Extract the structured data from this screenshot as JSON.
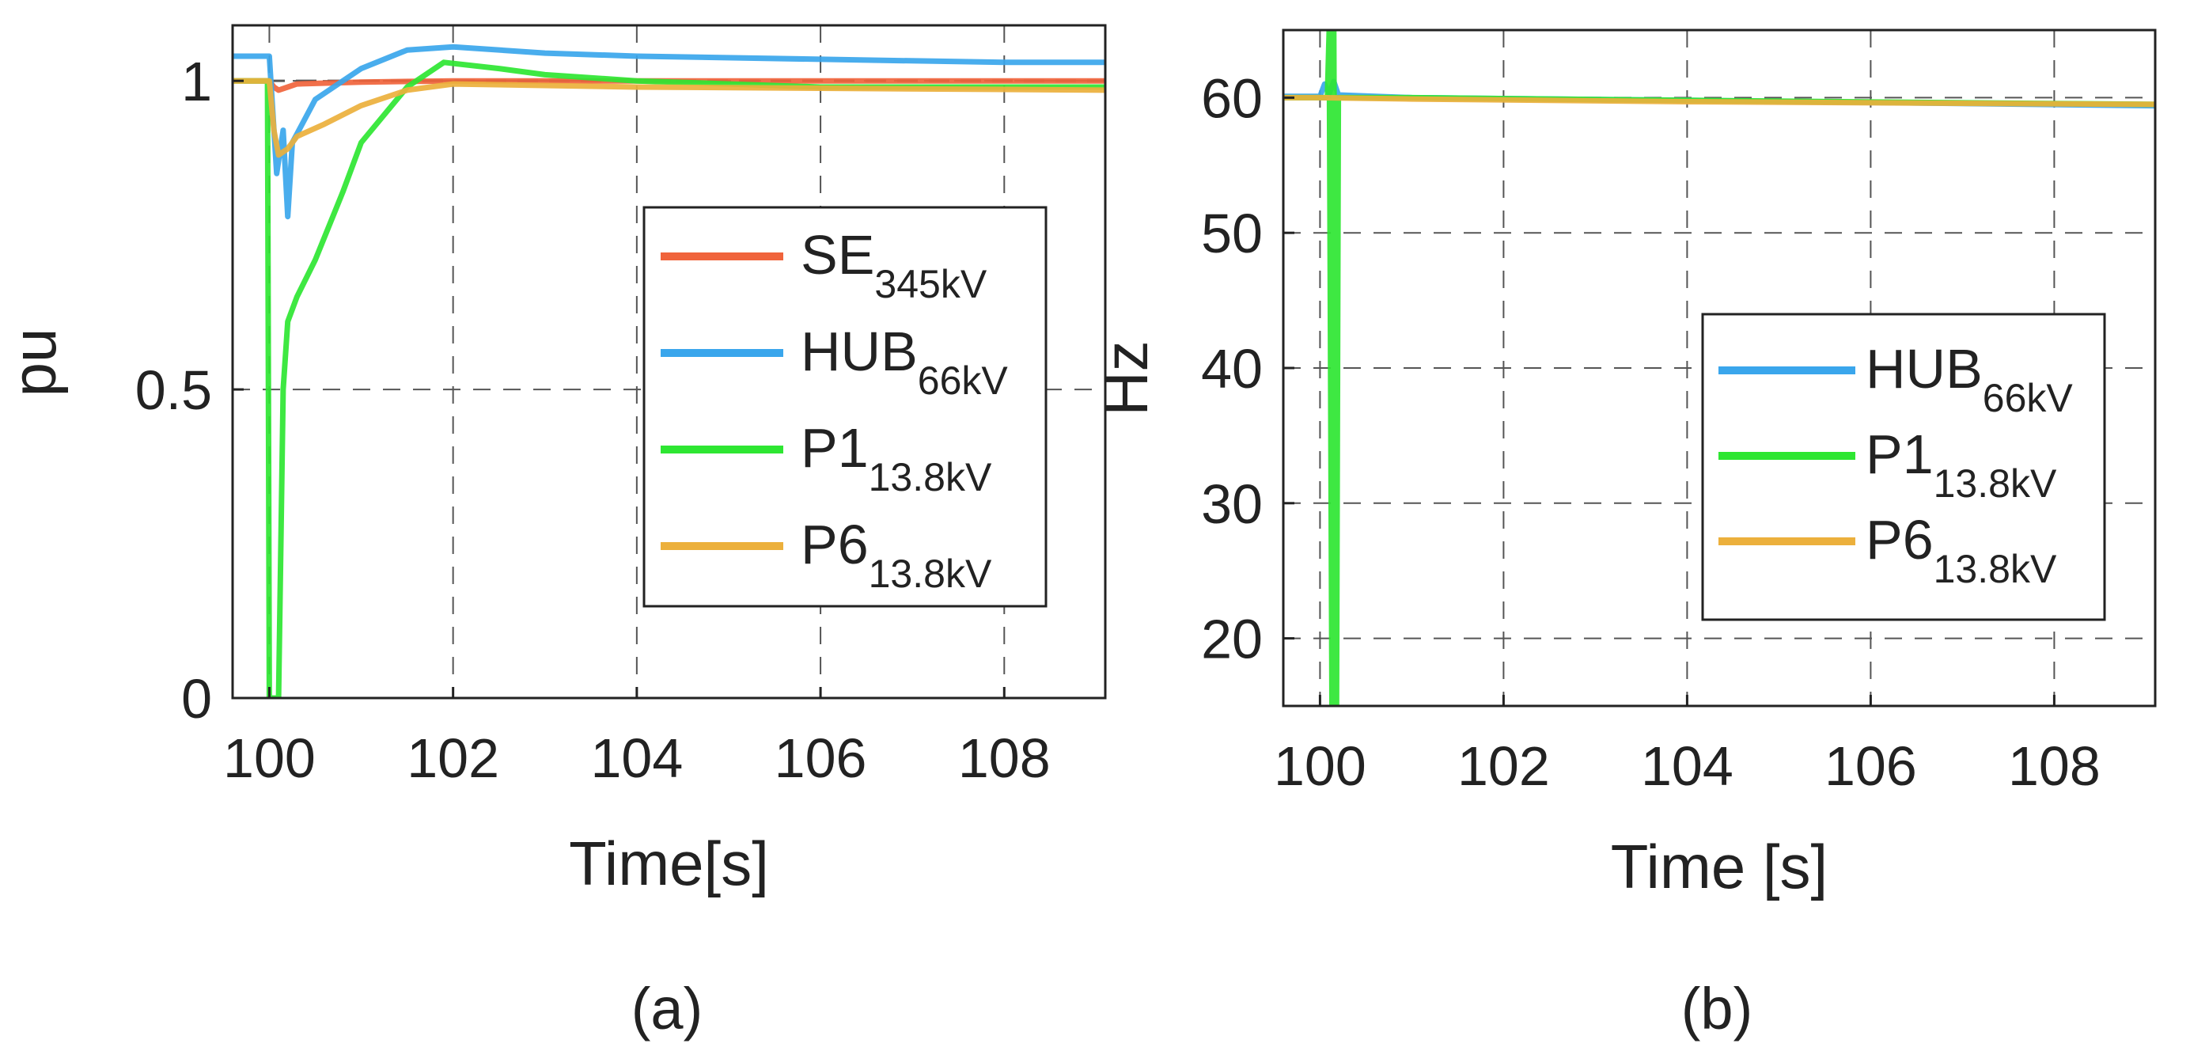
{
  "colors": {
    "se": "#f0643c",
    "hub": "#3aa6ec",
    "p1": "#2ee632",
    "p6": "#ecb03c",
    "grid": "#555555",
    "axis": "#222222"
  },
  "chart_data": [
    {
      "type": "line",
      "caption": "(a)",
      "xlabel": "Time[s]",
      "ylabel": "pu",
      "xlim": [
        99.6,
        109.1
      ],
      "ylim": [
        0,
        1.09
      ],
      "xticks": [
        100,
        102,
        104,
        106,
        108
      ],
      "xtick_labels": [
        "100",
        "102",
        "104",
        "106",
        "108"
      ],
      "yticks": [
        0,
        0.5,
        1
      ],
      "ytick_labels": [
        "0",
        "0.5",
        "1"
      ],
      "grid": true,
      "reference_line": 1.0,
      "legend": {
        "position": "center-right",
        "entries": [
          {
            "base": "SE",
            "sub": "345kV",
            "color_key": "se"
          },
          {
            "base": "HUB",
            "sub": "66kV",
            "color_key": "hub"
          },
          {
            "base": "P1",
            "sub": "13.8kV",
            "color_key": "p1"
          },
          {
            "base": "P6",
            "sub": "13.8kV",
            "color_key": "p6"
          }
        ]
      },
      "series": [
        {
          "name": "SE 345kV",
          "color_key": "se",
          "x": [
            99.6,
            100.0,
            100.05,
            100.1,
            100.2,
            100.3,
            101,
            102,
            104,
            106,
            109.1
          ],
          "y": [
            1.0,
            1.0,
            0.99,
            0.985,
            0.99,
            0.995,
            0.998,
            1.0,
            1.0,
            1.0,
            1.0
          ]
        },
        {
          "name": "HUB 66kV",
          "color_key": "hub",
          "x": [
            99.6,
            100.0,
            100.08,
            100.15,
            100.2,
            100.25,
            100.5,
            101.0,
            101.5,
            102.0,
            103,
            104,
            106,
            108,
            109.1
          ],
          "y": [
            1.04,
            1.04,
            0.85,
            0.92,
            0.78,
            0.9,
            0.97,
            1.02,
            1.05,
            1.055,
            1.045,
            1.04,
            1.035,
            1.03,
            1.03
          ]
        },
        {
          "name": "P1 13.8kV",
          "color_key": "p1",
          "x": [
            99.6,
            99.98,
            100.0,
            100.05,
            100.1,
            100.15,
            100.2,
            100.3,
            100.5,
            100.8,
            101.0,
            101.5,
            101.9,
            102.5,
            103,
            104,
            106,
            109.1
          ],
          "y": [
            1.0,
            1.0,
            0.0,
            0.0,
            0.0,
            0.5,
            0.61,
            0.65,
            0.71,
            0.82,
            0.9,
            0.99,
            1.03,
            1.02,
            1.01,
            1.0,
            0.99,
            0.99
          ]
        },
        {
          "name": "P6 13.8kV",
          "color_key": "p6",
          "x": [
            99.6,
            100.0,
            100.05,
            100.1,
            100.2,
            100.3,
            100.6,
            101.0,
            101.5,
            102.0,
            104,
            106,
            109.1
          ],
          "y": [
            1.0,
            1.0,
            0.92,
            0.88,
            0.89,
            0.91,
            0.93,
            0.96,
            0.985,
            0.995,
            0.99,
            0.988,
            0.985
          ]
        }
      ]
    },
    {
      "type": "line",
      "caption": "(b)",
      "xlabel": "Time [s]",
      "ylabel": "Hz",
      "xlim": [
        99.6,
        109.1
      ],
      "ylim": [
        15,
        65
      ],
      "xticks": [
        100,
        102,
        104,
        106,
        108
      ],
      "xtick_labels": [
        "100",
        "102",
        "104",
        "106",
        "108"
      ],
      "yticks": [
        20,
        30,
        40,
        50,
        60
      ],
      "ytick_labels": [
        "20",
        "30",
        "40",
        "50",
        "60"
      ],
      "grid": true,
      "legend": {
        "position": "center-right",
        "entries": [
          {
            "base": "HUB",
            "sub": "66kV",
            "color_key": "hub"
          },
          {
            "base": "P1",
            "sub": "13.8kV",
            "color_key": "p1"
          },
          {
            "base": "P6",
            "sub": "13.8kV",
            "color_key": "p6"
          }
        ]
      },
      "series": [
        {
          "name": "HUB 66kV",
          "color_key": "hub",
          "x": [
            99.6,
            100.0,
            100.05,
            100.1,
            100.15,
            100.2,
            101,
            104,
            109.1
          ],
          "y": [
            60.1,
            60.1,
            61.0,
            60.3,
            61.2,
            60.2,
            60.0,
            59.8,
            59.4
          ]
        },
        {
          "name": "P1 13.8kV",
          "color_key": "p1",
          "x": [
            99.6,
            100.08,
            100.1,
            100.13,
            100.15,
            100.18,
            100.2,
            101,
            104,
            109.1
          ],
          "y": [
            60.0,
            60.0,
            65.0,
            15.0,
            65.0,
            15.0,
            60.0,
            60.0,
            59.8,
            59.5
          ]
        },
        {
          "name": "P6 13.8kV",
          "color_key": "p6",
          "x": [
            99.6,
            100.0,
            101,
            104,
            109.1
          ],
          "y": [
            60.0,
            60.0,
            59.9,
            59.7,
            59.5
          ]
        }
      ]
    }
  ]
}
